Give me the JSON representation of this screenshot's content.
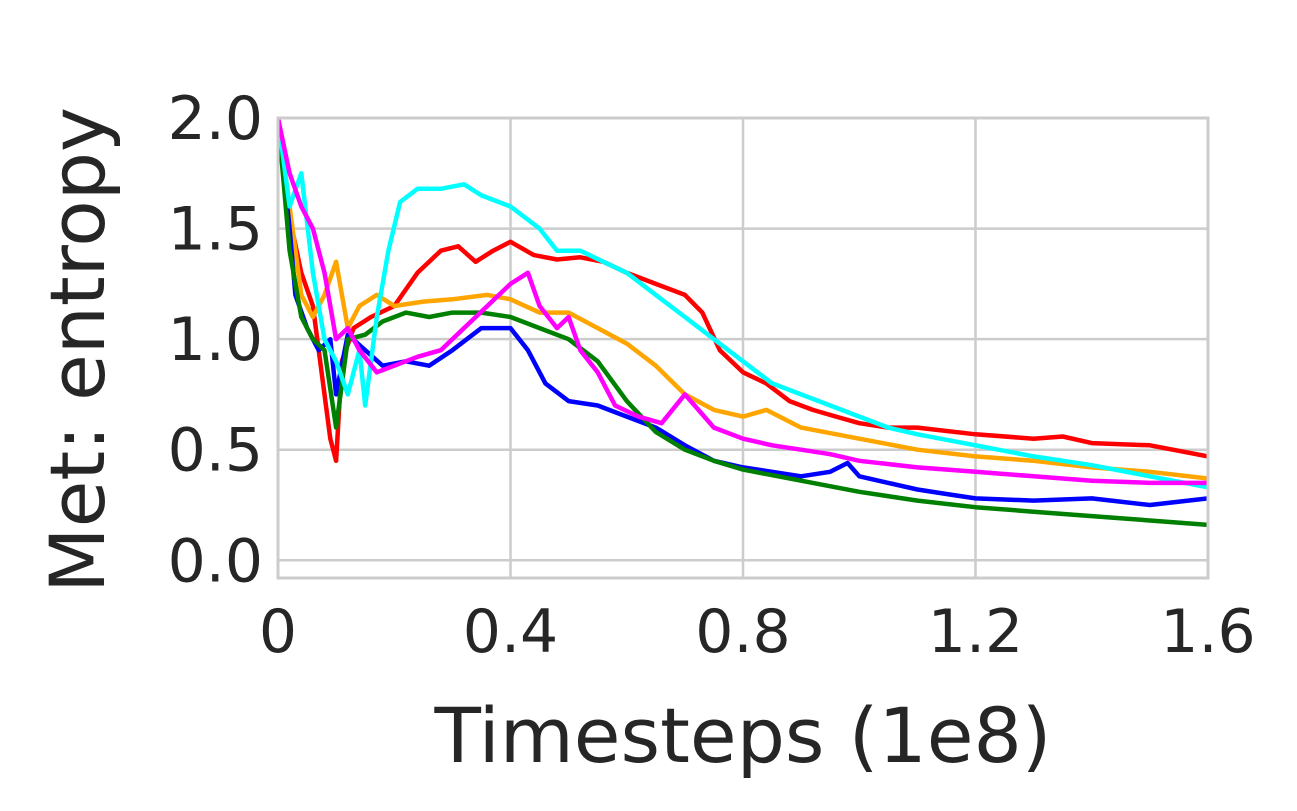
{
  "chart_data": {
    "type": "line",
    "title": "",
    "xlabel": "Timesteps (1e8)",
    "ylabel": "Met: entropy",
    "xlim": [
      0,
      1.6
    ],
    "ylim": [
      -0.08,
      2.0
    ],
    "xticks": [
      0,
      0.4,
      0.8,
      1.2,
      1.6
    ],
    "xtick_labels": [
      "0",
      "0.4",
      "0.8",
      "1.2",
      "1.6"
    ],
    "yticks": [
      0.0,
      0.5,
      1.0,
      1.5,
      2.0
    ],
    "ytick_labels": [
      "0.0",
      "0.5",
      "1.0",
      "1.5",
      "2.0"
    ],
    "grid": true,
    "legend": "none",
    "series": [
      {
        "color": "#ff0000",
        "x": [
          0,
          0.02,
          0.04,
          0.06,
          0.08,
          0.09,
          0.1,
          0.11,
          0.13,
          0.16,
          0.2,
          0.24,
          0.28,
          0.31,
          0.34,
          0.37,
          0.4,
          0.44,
          0.48,
          0.52,
          0.56,
          0.6,
          0.65,
          0.7,
          0.73,
          0.76,
          0.8,
          0.84,
          0.88,
          0.92,
          0.96,
          1.0,
          1.05,
          1.1,
          1.2,
          1.3,
          1.35,
          1.4,
          1.5,
          1.6
        ],
        "y": [
          2.0,
          1.55,
          1.3,
          1.15,
          0.75,
          0.55,
          0.45,
          0.9,
          1.05,
          1.1,
          1.15,
          1.3,
          1.4,
          1.42,
          1.35,
          1.4,
          1.44,
          1.38,
          1.36,
          1.37,
          1.35,
          1.3,
          1.25,
          1.2,
          1.12,
          0.95,
          0.85,
          0.8,
          0.72,
          0.68,
          0.65,
          0.62,
          0.6,
          0.6,
          0.57,
          0.55,
          0.56,
          0.53,
          0.52,
          0.47
        ]
      },
      {
        "color": "#ffa500",
        "x": [
          0,
          0.02,
          0.04,
          0.06,
          0.08,
          0.1,
          0.12,
          0.14,
          0.17,
          0.2,
          0.25,
          0.3,
          0.36,
          0.4,
          0.45,
          0.5,
          0.55,
          0.6,
          0.65,
          0.7,
          0.75,
          0.8,
          0.84,
          0.9,
          1.0,
          1.1,
          1.2,
          1.3,
          1.4,
          1.5,
          1.6
        ],
        "y": [
          2.0,
          1.6,
          1.2,
          1.1,
          1.2,
          1.35,
          1.05,
          1.15,
          1.2,
          1.15,
          1.17,
          1.18,
          1.2,
          1.18,
          1.12,
          1.12,
          1.05,
          0.98,
          0.88,
          0.75,
          0.68,
          0.65,
          0.68,
          0.6,
          0.55,
          0.5,
          0.47,
          0.45,
          0.42,
          0.4,
          0.37
        ]
      },
      {
        "color": "#0000ff",
        "x": [
          0,
          0.02,
          0.03,
          0.05,
          0.07,
          0.09,
          0.1,
          0.12,
          0.15,
          0.18,
          0.22,
          0.26,
          0.3,
          0.35,
          0.4,
          0.43,
          0.46,
          0.5,
          0.55,
          0.6,
          0.65,
          0.7,
          0.75,
          0.8,
          0.85,
          0.9,
          0.95,
          0.98,
          1.0,
          1.05,
          1.1,
          1.15,
          1.2,
          1.3,
          1.4,
          1.5,
          1.6
        ],
        "y": [
          2.0,
          1.5,
          1.2,
          1.05,
          0.95,
          1.0,
          0.75,
          1.02,
          0.95,
          0.88,
          0.9,
          0.88,
          0.95,
          1.05,
          1.05,
          0.95,
          0.8,
          0.72,
          0.7,
          0.65,
          0.6,
          0.52,
          0.45,
          0.42,
          0.4,
          0.38,
          0.4,
          0.44,
          0.38,
          0.35,
          0.32,
          0.3,
          0.28,
          0.27,
          0.28,
          0.25,
          0.28
        ]
      },
      {
        "color": "#008000",
        "x": [
          0,
          0.02,
          0.04,
          0.06,
          0.08,
          0.1,
          0.12,
          0.15,
          0.18,
          0.22,
          0.26,
          0.3,
          0.35,
          0.4,
          0.45,
          0.5,
          0.55,
          0.6,
          0.65,
          0.7,
          0.75,
          0.8,
          0.9,
          1.0,
          1.1,
          1.2,
          1.3,
          1.4,
          1.5,
          1.6
        ],
        "y": [
          2.0,
          1.4,
          1.1,
          1.0,
          0.95,
          0.6,
          1.0,
          1.02,
          1.08,
          1.12,
          1.1,
          1.12,
          1.12,
          1.1,
          1.05,
          1.0,
          0.9,
          0.72,
          0.58,
          0.5,
          0.45,
          0.41,
          0.36,
          0.31,
          0.27,
          0.24,
          0.22,
          0.2,
          0.18,
          0.16
        ]
      },
      {
        "color": "#00ffff",
        "x": [
          0,
          0.02,
          0.04,
          0.06,
          0.08,
          0.1,
          0.12,
          0.14,
          0.15,
          0.17,
          0.19,
          0.21,
          0.24,
          0.28,
          0.32,
          0.35,
          0.4,
          0.45,
          0.48,
          0.52,
          0.56,
          0.6,
          0.65,
          0.7,
          0.75,
          0.8,
          0.85,
          0.9,
          0.95,
          1.0,
          1.05,
          1.1,
          1.2,
          1.3,
          1.4,
          1.5,
          1.6
        ],
        "y": [
          2.0,
          1.6,
          1.75,
          1.3,
          1.0,
          0.9,
          0.75,
          0.95,
          0.7,
          1.1,
          1.4,
          1.62,
          1.68,
          1.68,
          1.7,
          1.65,
          1.6,
          1.5,
          1.4,
          1.4,
          1.35,
          1.3,
          1.2,
          1.1,
          1.0,
          0.9,
          0.8,
          0.75,
          0.7,
          0.65,
          0.6,
          0.57,
          0.52,
          0.47,
          0.43,
          0.38,
          0.33
        ]
      },
      {
        "color": "#ff00ff",
        "x": [
          0,
          0.02,
          0.04,
          0.06,
          0.08,
          0.1,
          0.12,
          0.14,
          0.17,
          0.2,
          0.24,
          0.28,
          0.32,
          0.36,
          0.4,
          0.43,
          0.45,
          0.48,
          0.5,
          0.52,
          0.55,
          0.58,
          0.62,
          0.66,
          0.7,
          0.75,
          0.8,
          0.85,
          0.9,
          0.95,
          1.0,
          1.1,
          1.2,
          1.3,
          1.4,
          1.5,
          1.6
        ],
        "y": [
          2.0,
          1.75,
          1.6,
          1.5,
          1.3,
          1.0,
          1.05,
          0.95,
          0.85,
          0.88,
          0.92,
          0.95,
          1.05,
          1.15,
          1.25,
          1.3,
          1.15,
          1.05,
          1.1,
          0.95,
          0.85,
          0.7,
          0.65,
          0.62,
          0.75,
          0.6,
          0.55,
          0.52,
          0.5,
          0.48,
          0.45,
          0.42,
          0.4,
          0.38,
          0.36,
          0.35,
          0.35
        ]
      }
    ]
  }
}
